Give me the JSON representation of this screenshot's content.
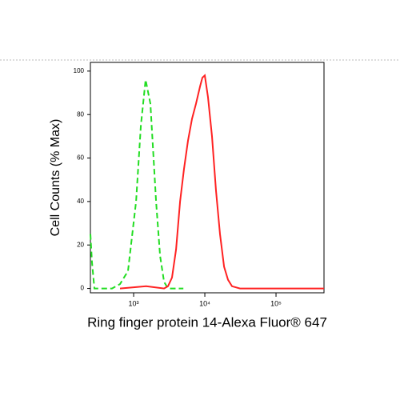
{
  "chart_data": {
    "type": "line",
    "xlabel": "Ring finger protein 14-Alexa Fluor® 647",
    "ylabel": "Cell Counts (% Max)",
    "xscale": "log",
    "xlim": [
      247,
      472000
    ],
    "ylim": [
      -2,
      104
    ],
    "xticks": [
      {
        "value": 1000,
        "label": "10³"
      },
      {
        "value": 10000,
        "label": "10⁴"
      },
      {
        "value": 100000,
        "label": "10⁵"
      }
    ],
    "yticks": [
      0,
      20,
      40,
      60,
      80,
      100
    ],
    "series": [
      {
        "color": "#22dd22",
        "linestyle": "dashed",
        "x": [
          247,
          260,
          281,
          497,
          644,
          834,
          1081,
          1263,
          1474,
          1722,
          2064,
          2350,
          2674,
          3041,
          5000
        ],
        "values": [
          25,
          12,
          0,
          0,
          2,
          8,
          40,
          75,
          96,
          85,
          40,
          15,
          3,
          0,
          0
        ]
      },
      {
        "color": "#ff2222",
        "linestyle": "solid",
        "x": [
          644,
          1500,
          2674,
          3041,
          3459,
          3944,
          4487,
          5105,
          5808,
          6607,
          7516,
          8570,
          9247,
          10000,
          11090,
          12620,
          14360,
          16340,
          18620,
          21180,
          24100,
          31190,
          113800,
          472000
        ],
        "values": [
          0,
          1,
          0,
          1,
          5,
          18,
          40,
          55,
          68,
          78,
          85,
          93,
          97,
          98,
          88,
          70,
          45,
          25,
          10,
          4,
          1,
          0,
          0,
          0
        ]
      }
    ]
  }
}
